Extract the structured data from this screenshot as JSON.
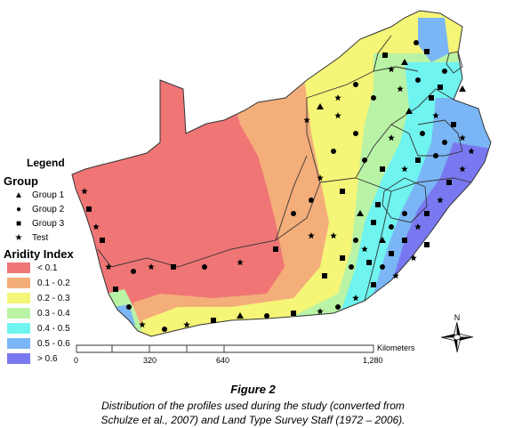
{
  "legend": {
    "title": "Legend",
    "group_heading": "Group",
    "groups": [
      {
        "label": "Group 1",
        "symbol": "triangle-icon"
      },
      {
        "label": "Group 2",
        "symbol": "circle-icon"
      },
      {
        "label": "Group 3",
        "symbol": "square-icon"
      },
      {
        "label": "Test",
        "symbol": "star-icon"
      }
    ],
    "aridity_heading": "Aridity Index",
    "aridity_classes": [
      {
        "label": "< 0.1",
        "color": "#f07575"
      },
      {
        "label": "0.1 - 0.2",
        "color": "#f4ae7a"
      },
      {
        "label": "0.2 - 0.3",
        "color": "#f5f577"
      },
      {
        "label": "0.3 - 0.4",
        "color": "#b9f3a5"
      },
      {
        "label": "0.4 - 0.5",
        "color": "#6ff4f0"
      },
      {
        "label": "0.5 - 0.6",
        "color": "#7ab6f5"
      },
      {
        "label": "> 0.6",
        "color": "#7a78f0"
      }
    ]
  },
  "scale_bar": {
    "unit": "Kilometers",
    "ticks": [
      "0",
      "320",
      "640",
      "1,280"
    ]
  },
  "north_arrow": {
    "label": "N"
  },
  "caption": {
    "title": "Figure 2",
    "line1": "Distribution of the profiles used during the study (converted from",
    "line2": "Schulze et al., 2007) and Land Type Survey Staff (1972 – 2006)."
  }
}
